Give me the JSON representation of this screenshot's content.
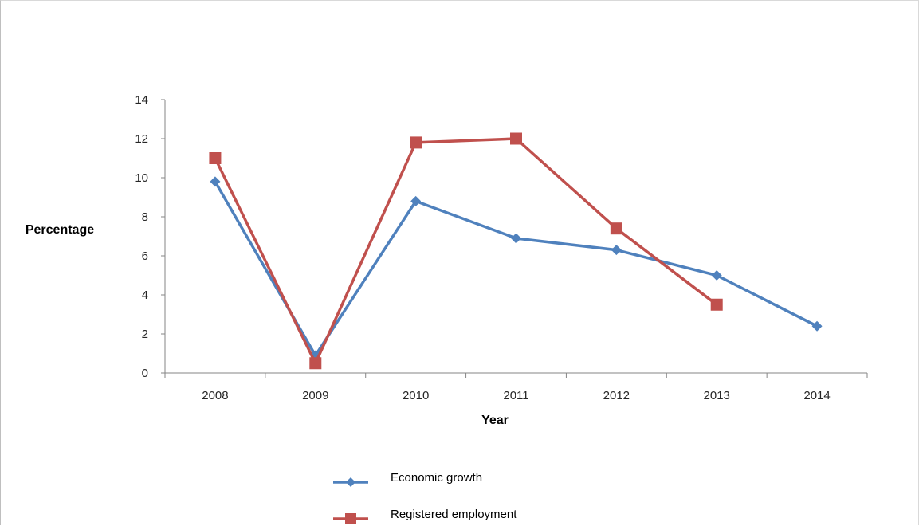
{
  "chart_data": {
    "type": "line",
    "title": "",
    "xlabel": "Year",
    "ylabel": "Percentage",
    "categories": [
      "2008",
      "2009",
      "2010",
      "2011",
      "2012",
      "2013",
      "2014"
    ],
    "ylim": [
      0,
      14
    ],
    "yticks": [
      0,
      2,
      4,
      6,
      8,
      10,
      12,
      14
    ],
    "grid": false,
    "legend_position": "bottom",
    "series": [
      {
        "name": "Economic growth",
        "color": "#4f81bd",
        "marker": "diamond",
        "values": [
          9.8,
          0.9,
          8.8,
          6.9,
          6.3,
          5.0,
          2.4
        ]
      },
      {
        "name": "Registered employment",
        "color": "#c0504d",
        "marker": "square",
        "values": [
          11.0,
          0.5,
          11.8,
          12.0,
          7.4,
          3.5,
          null
        ]
      }
    ]
  }
}
